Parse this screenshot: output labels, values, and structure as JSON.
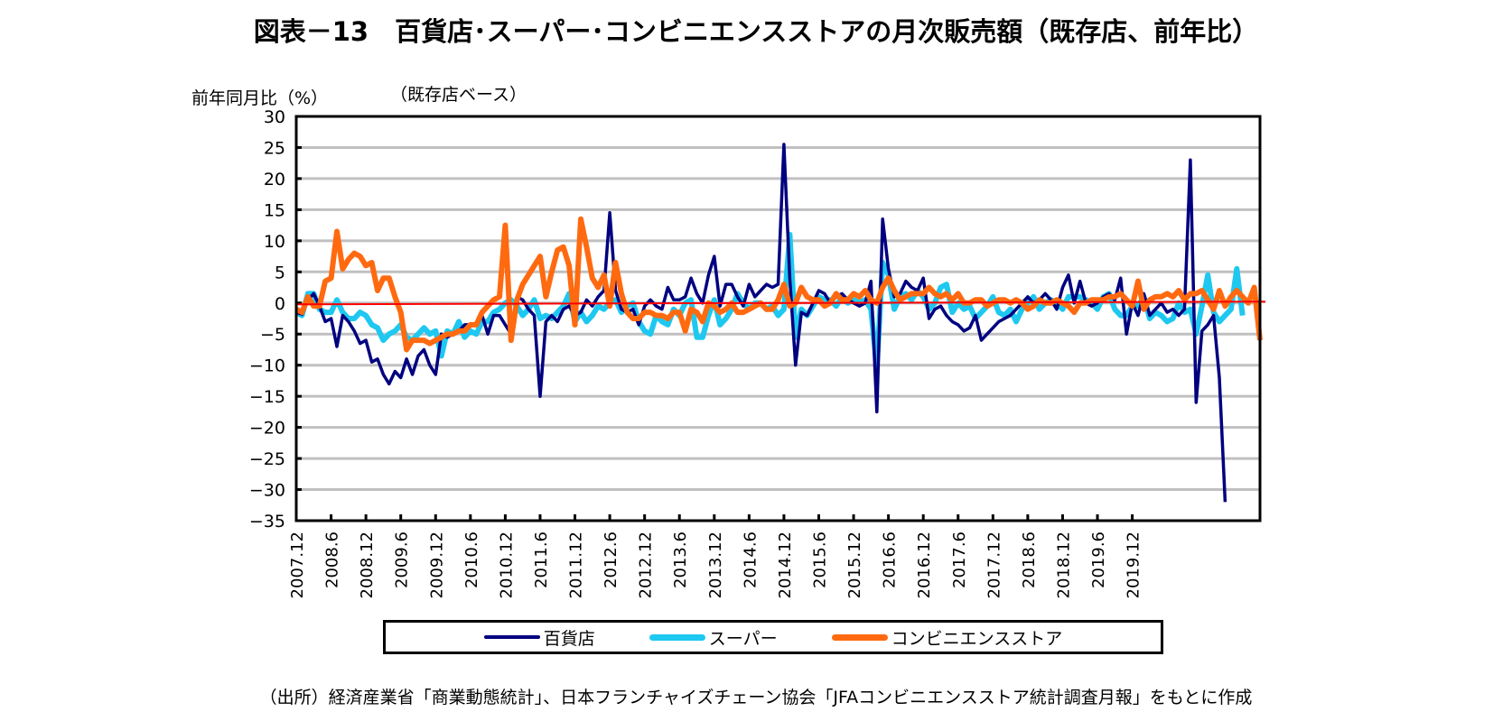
{
  "title": "図表－13　百貨店･スーパー･コンビニエンスストアの月次販売額（既存店、前年比）",
  "source": "（出所）経済産業省「商業動態統計」、日本フランチャイズチェーン協会「JFAコンビニエンスストア統計調査月報」をもとに作成",
  "chart_data": {
    "type": "line",
    "title": "図表－13　百貨店･スーパー･コンビニエンスストアの月次販売額（既存店、前年比）",
    "ylabel": "前年同月比（%）",
    "note": "（既存店ベース）",
    "xlabel": "",
    "ylim": [
      -35,
      30
    ],
    "yticks": [
      30,
      25,
      20,
      15,
      10,
      5,
      0,
      -5,
      -10,
      -15,
      -20,
      -25,
      -30,
      -35
    ],
    "xstart": "2007.12",
    "xticks": [
      "2007.12",
      "2008.6",
      "2008.12",
      "2009.6",
      "2009.12",
      "2010.6",
      "2010.12",
      "2011.6",
      "2011.12",
      "2012.6",
      "2012.12",
      "2013.6",
      "2013.12",
      "2014.6",
      "2014.12",
      "2015.6",
      "2015.12",
      "2016.6",
      "2016.12",
      "2017.6",
      "2017.12",
      "2018.6",
      "2018.12",
      "2019.6",
      "2019.12"
    ],
    "grid": true,
    "legend_position": "bottom",
    "reference_line": {
      "value": 0,
      "color": "#ff0000"
    },
    "colors": {
      "dept": "#000080",
      "super": "#1ec8f0",
      "conv": "#ff6a10",
      "grid": "#c0c0c0"
    },
    "series": [
      {
        "name": "百貨店",
        "key": "dept",
        "values": [
          -1.5,
          -1.8,
          0.5,
          1.5,
          -0.5,
          -3,
          -2.5,
          -7,
          -2,
          -3,
          -4.5,
          -6.5,
          -6,
          -9.5,
          -9,
          -11.5,
          -13,
          -11,
          -12,
          -9,
          -11.5,
          -8.5,
          -7.5,
          -10,
          -11.5,
          -5,
          -5.5,
          -5,
          -4.5,
          -3.5,
          -3.5,
          -3.5,
          -2,
          -5,
          -2,
          -2,
          -3.5,
          -5,
          1,
          0.5,
          -1,
          -2,
          -15,
          -3,
          -2,
          -3,
          -1,
          -0.5,
          -2,
          -1.5,
          0.5,
          -0.5,
          1,
          2,
          14.5,
          2,
          -1,
          -1.5,
          -1,
          -3.5,
          -0.5,
          0.5,
          -0.5,
          -1,
          2.5,
          0.5,
          0.5,
          1,
          4,
          1.5,
          0,
          4.5,
          7.5,
          -0.5,
          3,
          3,
          1,
          -0.5,
          3,
          1,
          2,
          3,
          2.5,
          3,
          25.5,
          4,
          -10,
          -1.5,
          -2,
          0,
          2,
          1.5,
          0,
          1,
          1.5,
          0.5,
          0,
          -0.5,
          0,
          3.5,
          -17.5,
          13.5,
          5.5,
          1,
          1.5,
          3.5,
          2.5,
          2,
          4,
          -2.5,
          -1,
          -0.5,
          -2,
          -3,
          -3.5,
          -4.5,
          -4,
          -2,
          -6,
          -5,
          -4,
          -3,
          -2.5,
          -2,
          -1,
          0,
          1,
          0,
          0.5,
          1.5,
          0.5,
          -1,
          2.5,
          4.5,
          0,
          3.5,
          0,
          -0.5,
          0,
          1,
          1.5,
          0.5,
          4,
          -5,
          0,
          -2,
          1.5,
          -2,
          -1,
          0,
          -1.5,
          -1,
          -2,
          -1,
          23,
          -16,
          -4.5,
          -3.5,
          -2,
          -12,
          -32
        ]
      },
      {
        "name": "スーパー",
        "key": "super",
        "values": [
          -1.5,
          -2,
          1.5,
          1.5,
          -1,
          -1.5,
          -1.5,
          0.5,
          -1.5,
          -2.5,
          -2.5,
          -1.5,
          -2,
          -3.5,
          -4,
          -6,
          -5,
          -4.5,
          -3.5,
          -5.5,
          -6,
          -5,
          -4,
          -5,
          -4.5,
          -8.5,
          -4.5,
          -5,
          -3,
          -5.5,
          -4.5,
          -5,
          -3,
          -3,
          -1.5,
          -1,
          0,
          0.5,
          -0.5,
          -2,
          -1,
          0.5,
          -2.5,
          -2,
          -2.5,
          -1.5,
          -0.5,
          1.5,
          -3,
          -1.5,
          -3,
          -2,
          -0.5,
          -1,
          0,
          0.5,
          -1.5,
          -0.5,
          0,
          -3,
          -4.5,
          -5,
          -2,
          -3,
          -3.5,
          -1,
          -2,
          0,
          0.5,
          -5.5,
          -5.5,
          -2,
          0.5,
          -3.5,
          -2.5,
          -1,
          1.5,
          0,
          -1,
          0,
          0,
          -1,
          -0.5,
          -2,
          -1,
          11,
          -5.5,
          -1,
          -2,
          -0.5,
          1,
          0.5,
          0.5,
          -0.5,
          1,
          0,
          0.5,
          0,
          0.5,
          -1,
          -10.5,
          6.5,
          4.5,
          -1,
          1,
          1.5,
          0.5,
          2,
          1,
          -1,
          0,
          2.5,
          3,
          -1.5,
          0,
          -1,
          -0.5,
          -2.5,
          -1.5,
          -0.5,
          1,
          -1.5,
          -2,
          -1,
          -3,
          -1,
          0,
          1,
          -1,
          0,
          0.5,
          0,
          -1,
          1,
          1,
          1,
          0.5,
          0,
          -1,
          1,
          1.5,
          -1,
          -2,
          -2,
          -0.5,
          -0.5,
          1,
          -2.5,
          -1.5,
          -2,
          -3,
          -2.5,
          0,
          -1.5,
          -1,
          -5,
          -0.5,
          4.5,
          -1.5,
          -3,
          -2,
          -1,
          5.5,
          -2
        ]
      },
      {
        "name": "コンビニエンスストア",
        "key": "conv",
        "values": [
          -1,
          -1.5,
          1,
          -0.5,
          -0.5,
          3.5,
          4,
          11.5,
          5.5,
          7,
          8,
          7.5,
          6,
          6.5,
          2,
          4,
          4,
          1,
          -1.5,
          -7.5,
          -6,
          -6,
          -6,
          -6.5,
          -6,
          -5.5,
          -5,
          -5,
          -4.5,
          -4.5,
          -3.5,
          -3.5,
          -1.5,
          -0.5,
          0.5,
          1,
          12.5,
          -6,
          0.5,
          3,
          4.5,
          6,
          7.5,
          1,
          5,
          8.5,
          9,
          6,
          -3.5,
          13.5,
          9,
          4,
          2.5,
          4.5,
          -0.5,
          6.5,
          1.5,
          -1.5,
          -2.5,
          -2.5,
          -1.5,
          -1.5,
          -2,
          -2,
          -2.5,
          -1.5,
          -1.5,
          -4.5,
          -1,
          -1.5,
          -3,
          0,
          -0.5,
          -1.5,
          -1,
          0,
          -1.5,
          -1.5,
          -1,
          -0.5,
          0,
          -1,
          -1,
          0.5,
          3,
          -0.5,
          0,
          2.5,
          1,
          0.5,
          0.5,
          -0.5,
          0,
          1.5,
          0.5,
          0.5,
          1.5,
          1,
          2,
          0.5,
          0,
          2.5,
          4,
          2,
          0.5,
          1,
          1.5,
          1.5,
          1.5,
          2.5,
          1.5,
          1,
          1.5,
          0.5,
          1.5,
          0,
          0,
          0.5,
          0.5,
          -0.5,
          0,
          0.5,
          0.5,
          0,
          0.5,
          0,
          -1,
          -0.5,
          0.5,
          0,
          0,
          0.5,
          0,
          -0.5,
          -1.5,
          0,
          0,
          0.5,
          0.5,
          0.5,
          1,
          1,
          1.5,
          0.5,
          -0.5,
          3.5,
          -1,
          0.5,
          1,
          1,
          1.5,
          1,
          2,
          0.5,
          1.5,
          1.5,
          2,
          0.5,
          -1,
          2,
          -0.5,
          1,
          2,
          1,
          0,
          2.5,
          -6
        ]
      }
    ]
  }
}
